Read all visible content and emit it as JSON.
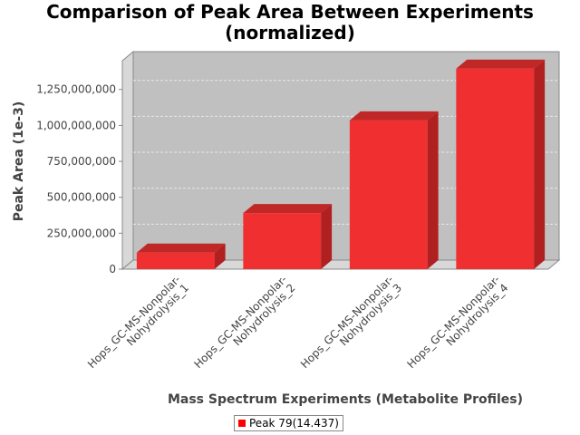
{
  "chart_data": {
    "type": "bar",
    "title_lines": [
      "Comparison of Peak Area Between Experiments",
      "(normalized)"
    ],
    "xlabel": "Mass Spectrum Experiments (Metabolite Profiles)",
    "ylabel": "Peak Area (1e-3)",
    "categories": [
      [
        "Hops_GC-MS-Nonpolar-",
        "Nohydrolysis_1"
      ],
      [
        "Hops_GC-MS-Nonpolar-",
        "Nohydrolysis_2"
      ],
      [
        "Hops_GC-MS-Nonpolar-",
        "Nohydrolysis_3"
      ],
      [
        "Hops_GC-MS-Nonpolar-",
        "Nohydrolysis_4"
      ]
    ],
    "series": [
      {
        "name": "Peak 79(14.437)",
        "values": [
          115000000,
          390000000,
          1035000000,
          1395000000
        ]
      }
    ],
    "ylim": [
      0,
      1450000000
    ],
    "yticks": [
      0,
      250000000,
      500000000,
      750000000,
      1000000000,
      1250000000
    ],
    "ytick_labels": [
      "0",
      "250,000,000",
      "500,000,000",
      "750,000,000",
      "1,000,000,000",
      "1,250,000,000"
    ],
    "grid": true,
    "legend_position": "bottom",
    "colors": {
      "bar": "#f03030",
      "bar_top": "#c02828",
      "bar_side": "#b02020",
      "plot_bg": "#c0c0c0",
      "wall": "#d8d8d8"
    }
  }
}
